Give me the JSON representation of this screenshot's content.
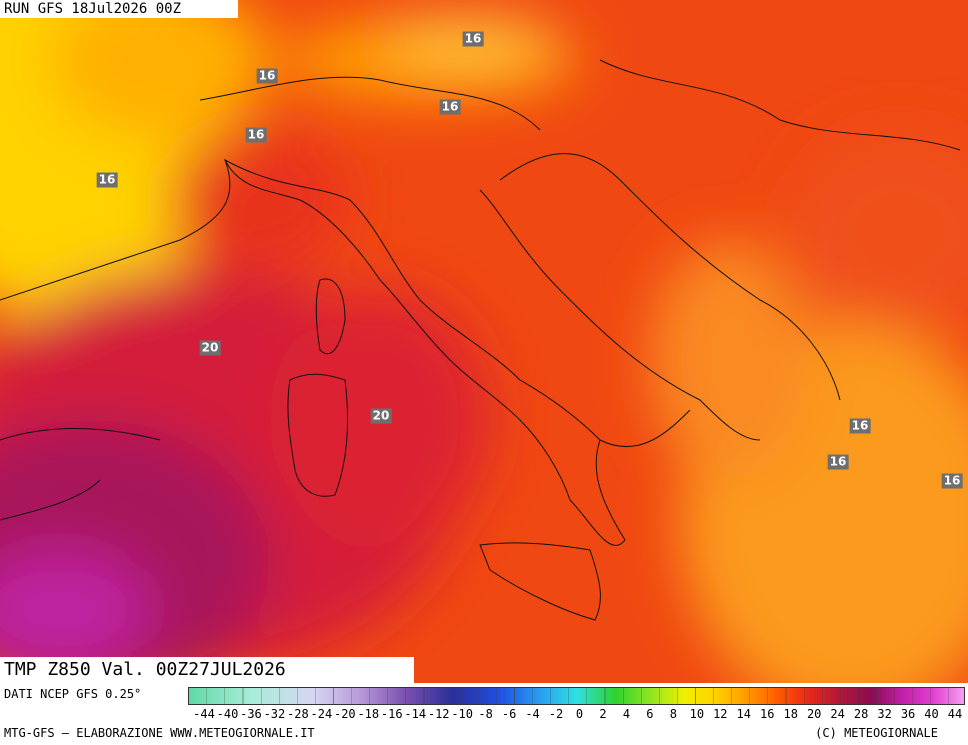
{
  "header": {
    "run": "RUN GFS 18Jul2026 00Z"
  },
  "footer": {
    "valid": "TMP Z850 Val. 00Z27JUL2026",
    "source": "DATI NCEP GFS 0.25°",
    "credit": "MTG-GFS — ELABORAZIONE WWW.METEOGIORNALE.IT",
    "copyright": "(C) METEOGIORNALE"
  },
  "contour_labels": [
    "16",
    "16",
    "16",
    "16",
    "16",
    "20",
    "20",
    "16",
    "16",
    "16"
  ],
  "colorbar_labels": [
    "-44",
    "-40",
    "-36",
    "-32",
    "-28",
    "-24",
    "-20",
    "-18",
    "-16",
    "-14",
    "-12",
    "-10",
    "-8",
    "-6",
    "-4",
    "-2",
    "0",
    "2",
    "4",
    "6",
    "8",
    "10",
    "12",
    "14",
    "16",
    "18",
    "20",
    "24",
    "28",
    "32",
    "36",
    "40",
    "44"
  ]
}
